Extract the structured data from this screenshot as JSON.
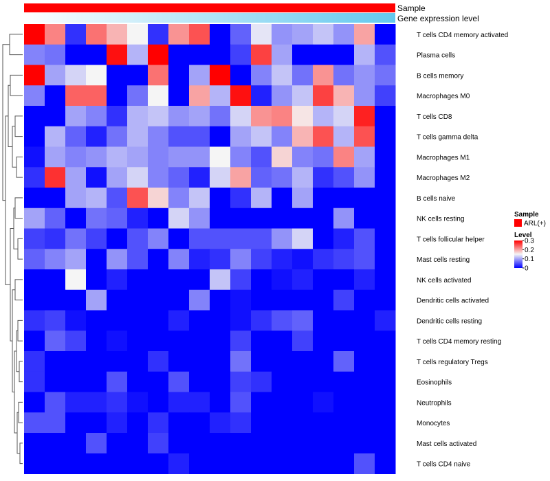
{
  "chart_data": {
    "type": "heatmap",
    "title": "",
    "annotation_tracks": [
      {
        "name": "Sample",
        "values_desc": "ARL(+) for all columns",
        "color": "#ff0000"
      },
      {
        "name": "Gene expression level",
        "gradient": [
          "#ffffff",
          "#62c8ee"
        ]
      }
    ],
    "rows": [
      "T cells CD4 memory activated",
      "Plasma cells",
      "B cells memory",
      "Macrophages M0",
      "T cells CD8",
      "T cells gamma delta",
      "Macrophages M1",
      "Macrophages M2",
      "B cells naive",
      "NK cells resting",
      "T cells follicular helper",
      "Mast cells resting",
      "NK cells activated",
      "Dendritic cells activated",
      "Dendritic cells resting",
      "T cells CD4 memory resting",
      "T cells regulatory  Tregs",
      "Eosinophils",
      "Neutrophils",
      "Monocytes",
      "Mast cells activated",
      "T cells CD4 naive"
    ],
    "n_columns": 18,
    "values": [
      [
        0.3,
        0.22,
        0.03,
        0.23,
        0.19,
        0.15,
        0.03,
        0.21,
        0.25,
        0.0,
        0.06,
        0.14,
        0.09,
        0.1,
        0.12,
        0.09,
        0.2,
        0.0
      ],
      [
        0.08,
        0.07,
        0.0,
        0.0,
        0.29,
        0.11,
        0.3,
        0.0,
        0.0,
        0.0,
        0.04,
        0.26,
        0.1,
        0.0,
        0.0,
        0.0,
        0.11,
        0.05
      ],
      [
        0.3,
        0.1,
        0.13,
        0.15,
        0.0,
        0.0,
        0.23,
        0.0,
        0.1,
        0.3,
        0.0,
        0.08,
        0.12,
        0.07,
        0.21,
        0.07,
        0.09,
        0.07
      ],
      [
        0.08,
        0.0,
        0.24,
        0.24,
        0.0,
        0.07,
        0.15,
        0.0,
        0.2,
        0.11,
        0.29,
        0.02,
        0.09,
        0.12,
        0.26,
        0.19,
        0.09,
        0.04
      ],
      [
        0.0,
        0.0,
        0.1,
        0.08,
        0.03,
        0.11,
        0.12,
        0.09,
        0.1,
        0.07,
        0.13,
        0.21,
        0.22,
        0.16,
        0.11,
        0.13,
        0.28,
        0.0
      ],
      [
        0.0,
        0.11,
        0.06,
        0.02,
        0.07,
        0.11,
        0.08,
        0.05,
        0.05,
        0.0,
        0.1,
        0.12,
        0.08,
        0.19,
        0.25,
        0.11,
        0.25,
        0.0
      ],
      [
        0.01,
        0.1,
        0.08,
        0.09,
        0.11,
        0.1,
        0.08,
        0.09,
        0.09,
        0.15,
        0.08,
        0.05,
        0.17,
        0.08,
        0.07,
        0.22,
        0.1,
        0.0
      ],
      [
        0.03,
        0.27,
        0.1,
        0.01,
        0.1,
        0.13,
        0.08,
        0.06,
        0.02,
        0.13,
        0.2,
        0.06,
        0.07,
        0.11,
        0.03,
        0.05,
        0.09,
        0.0
      ],
      [
        0.0,
        0.0,
        0.1,
        0.11,
        0.05,
        0.25,
        0.17,
        0.08,
        0.12,
        0.0,
        0.03,
        0.11,
        0.0,
        0.1,
        0.0,
        0.0,
        0.0,
        0.0
      ],
      [
        0.1,
        0.06,
        0.0,
        0.07,
        0.06,
        0.02,
        0.0,
        0.13,
        0.09,
        0.0,
        0.0,
        0.0,
        0.0,
        0.0,
        0.0,
        0.09,
        0.0,
        0.0
      ],
      [
        0.04,
        0.03,
        0.07,
        0.04,
        0.0,
        0.05,
        0.08,
        0.0,
        0.05,
        0.05,
        0.05,
        0.05,
        0.09,
        0.13,
        0.0,
        0.02,
        0.05,
        0.0
      ],
      [
        0.06,
        0.08,
        0.1,
        0.0,
        0.09,
        0.05,
        0.0,
        0.08,
        0.02,
        0.03,
        0.08,
        0.04,
        0.02,
        0.01,
        0.03,
        0.04,
        0.05,
        0.0
      ],
      [
        0.0,
        0.0,
        0.15,
        0.0,
        0.02,
        0.0,
        0.0,
        0.0,
        0.0,
        0.12,
        0.04,
        0.0,
        0.01,
        0.02,
        0.0,
        0.0,
        0.02,
        0.0
      ],
      [
        0.0,
        0.0,
        0.0,
        0.1,
        0.0,
        0.0,
        0.0,
        0.0,
        0.08,
        0.0,
        0.01,
        0.0,
        0.0,
        0.0,
        0.0,
        0.04,
        0.0,
        0.0
      ],
      [
        0.03,
        0.04,
        0.01,
        0.0,
        0.0,
        0.0,
        0.0,
        0.02,
        0.0,
        0.0,
        0.01,
        0.03,
        0.05,
        0.06,
        0.0,
        0.0,
        0.0,
        0.02
      ],
      [
        0.0,
        0.06,
        0.04,
        0.0,
        0.01,
        0.0,
        0.0,
        0.0,
        0.0,
        0.0,
        0.04,
        0.0,
        0.0,
        0.04,
        0.0,
        0.0,
        0.0,
        0.0
      ],
      [
        0.03,
        0.0,
        0.0,
        0.0,
        0.0,
        0.0,
        0.03,
        0.0,
        0.0,
        0.0,
        0.07,
        0.0,
        0.0,
        0.0,
        0.0,
        0.06,
        0.0,
        0.0
      ],
      [
        0.03,
        0.0,
        0.0,
        0.0,
        0.05,
        0.0,
        0.0,
        0.05,
        0.0,
        0.0,
        0.04,
        0.03,
        0.0,
        0.0,
        0.0,
        0.0,
        0.0,
        0.0
      ],
      [
        0.0,
        0.05,
        0.02,
        0.02,
        0.03,
        0.01,
        0.0,
        0.02,
        0.02,
        0.0,
        0.05,
        0.0,
        0.0,
        0.0,
        0.01,
        0.0,
        0.0,
        0.0
      ],
      [
        0.05,
        0.05,
        0.0,
        0.0,
        0.02,
        0.0,
        0.03,
        0.0,
        0.0,
        0.02,
        0.03,
        0.0,
        0.0,
        0.0,
        0.0,
        0.0,
        0.0,
        0.0
      ],
      [
        0.0,
        0.0,
        0.0,
        0.05,
        0.0,
        0.0,
        0.04,
        0.0,
        0.0,
        0.0,
        0.0,
        0.0,
        0.0,
        0.0,
        0.0,
        0.0,
        0.0,
        0.0
      ],
      [
        0.0,
        0.0,
        0.0,
        0.0,
        0.0,
        0.0,
        0.0,
        0.02,
        0.0,
        0.0,
        0.0,
        0.0,
        0.0,
        0.0,
        0.0,
        0.0,
        0.05,
        0.0
      ]
    ],
    "color_scale": {
      "min": 0,
      "max": 0.3,
      "stops": [
        {
          "value": 0,
          "color": "#0000ff"
        },
        {
          "value": 0.15,
          "color": "#f5f5f5"
        },
        {
          "value": 0.3,
          "color": "#ff0000"
        }
      ]
    },
    "legend": {
      "sample_title": "Sample",
      "sample_entry": "ARL(+)",
      "sample_color": "#ff0000",
      "level_title": "Level",
      "level_ticks": [
        "0.3",
        "0.2",
        "0.1",
        "0"
      ],
      "level_tick_values": [
        0.3,
        0.2,
        0.1,
        0
      ],
      "placement": "right"
    },
    "row_dendrogram": true
  }
}
